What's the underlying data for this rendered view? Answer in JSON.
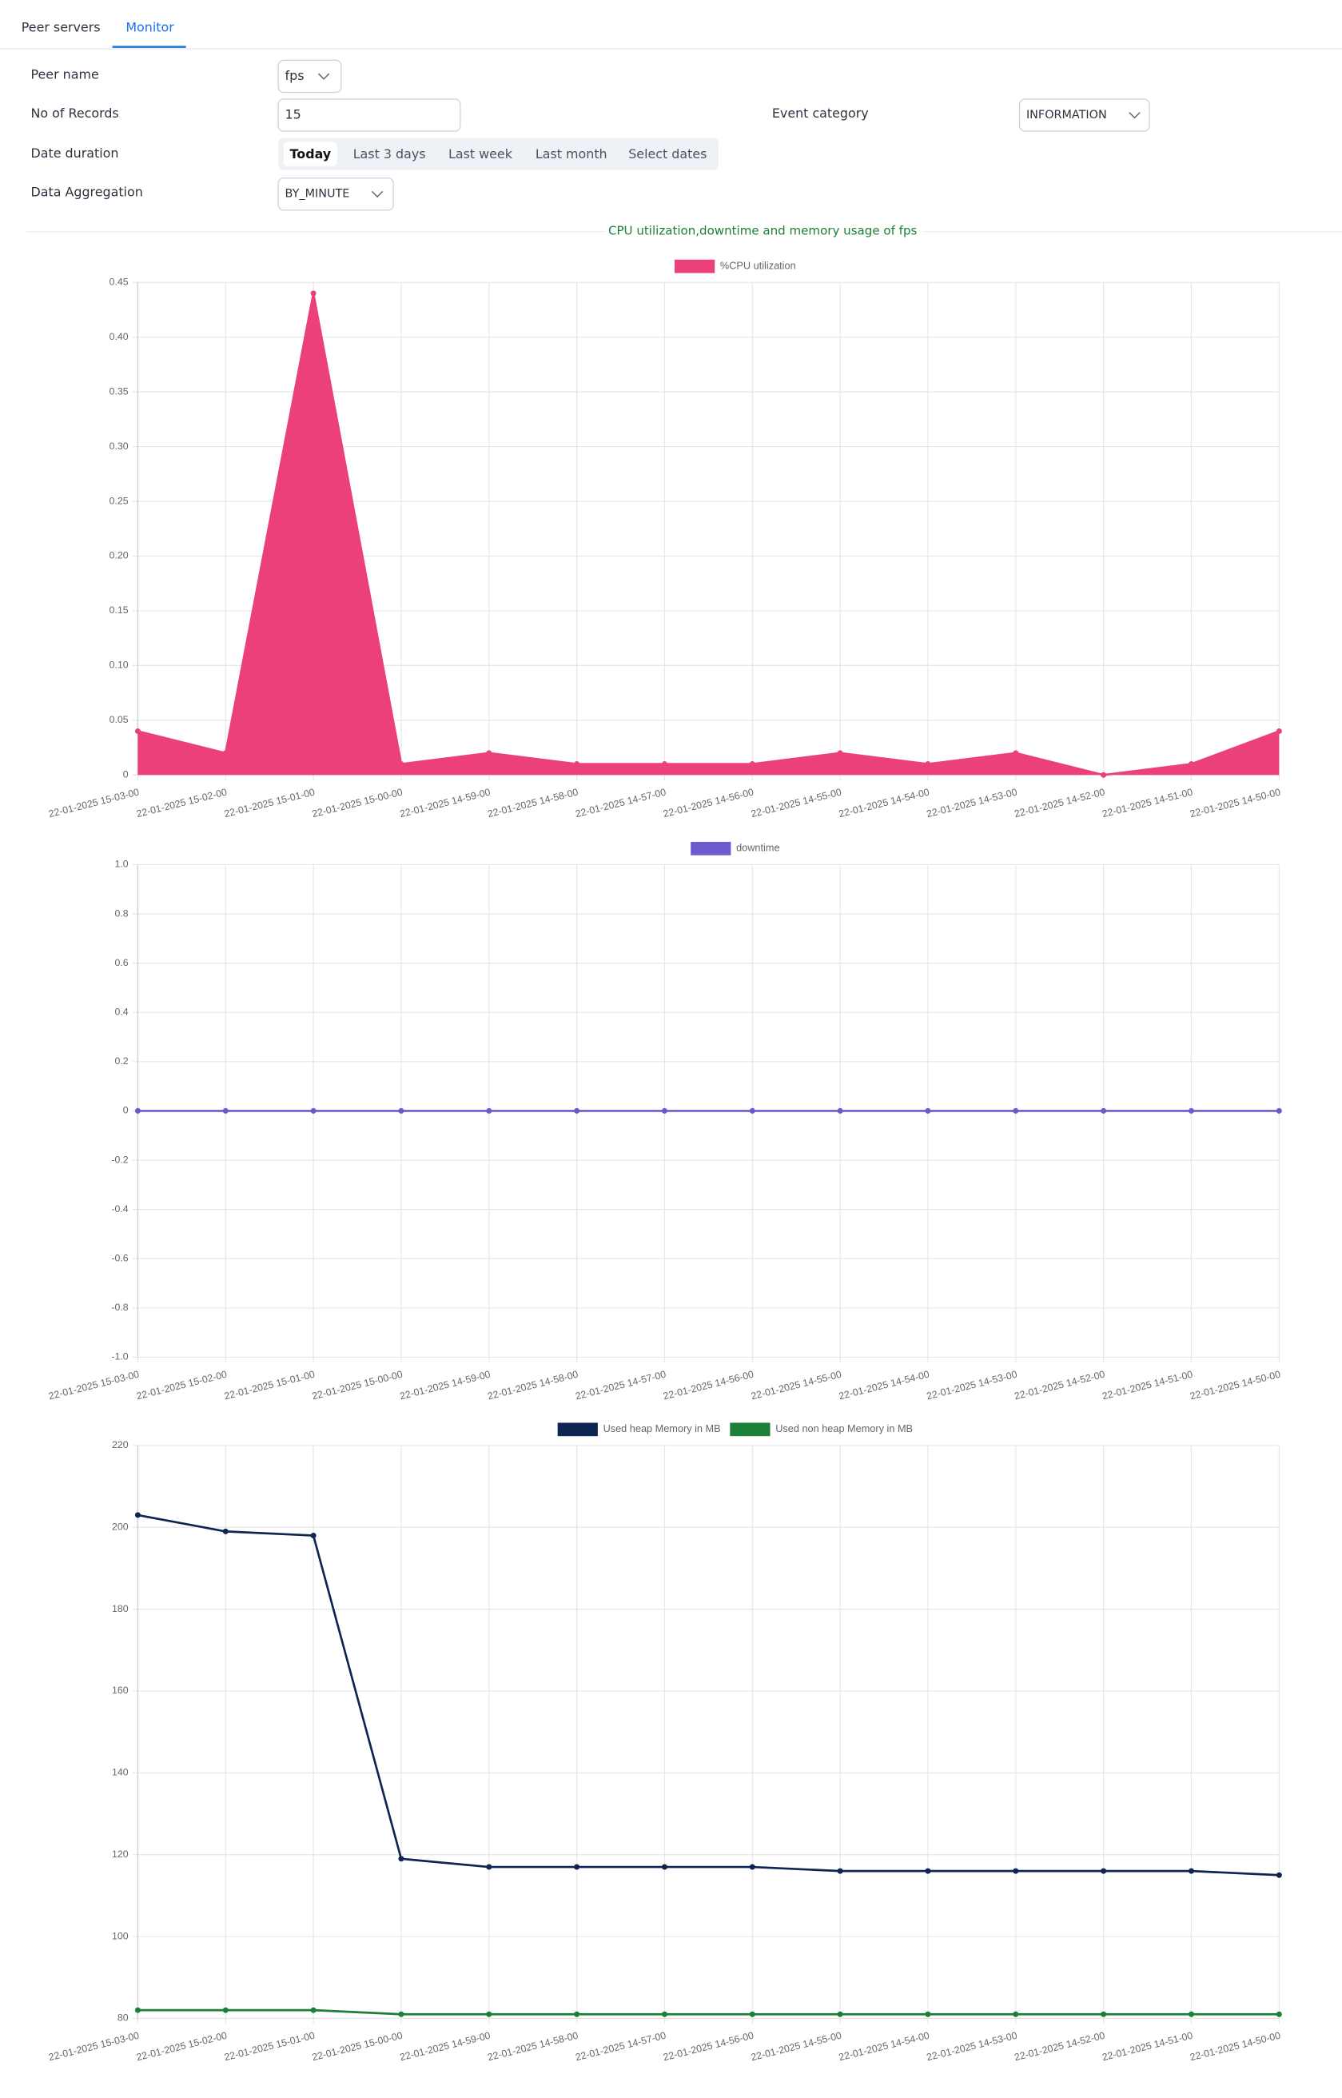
{
  "tabs": [
    "Peer servers",
    "Monitor"
  ],
  "form": {
    "peer_name": {
      "label": "Peer name",
      "value": "fps"
    },
    "records": {
      "label": "No of Records",
      "value": "15"
    },
    "event_category": {
      "label": "Event category",
      "value": "INFORMATION"
    },
    "date_duration": {
      "label": "Date duration",
      "options": [
        "Today",
        "Last 3 days",
        "Last week",
        "Last month",
        "Select dates"
      ]
    },
    "aggregation": {
      "label": "Data Aggregation",
      "value": "BY_MINUTE"
    }
  },
  "section_title": "CPU utilization,downtime and memory usage of fps",
  "chart_data": [
    {
      "type": "area",
      "categories": [
        "22-01-2025 15-03-00",
        "22-01-2025 15-02-00",
        "22-01-2025 15-01-00",
        "22-01-2025 15-00-00",
        "22-01-2025 14-59-00",
        "22-01-2025 14-58-00",
        "22-01-2025 14-57-00",
        "22-01-2025 14-56-00",
        "22-01-2025 14-55-00",
        "22-01-2025 14-54-00",
        "22-01-2025 14-53-00",
        "22-01-2025 14-52-00",
        "22-01-2025 14-51-00",
        "22-01-2025 14-50-00"
      ],
      "series": [
        {
          "name": "%CPU utilization",
          "color": "#ec407a",
          "values": [
            0.04,
            0.02,
            0.44,
            0.01,
            0.02,
            0.01,
            0.01,
            0.01,
            0.02,
            0.01,
            0.02,
            0,
            0.01,
            0.04
          ]
        }
      ],
      "ylim": [
        0,
        0.45
      ],
      "yticks": [
        0,
        0.05,
        {
          "value": 0.1,
          "label": "0.10"
        },
        0.15,
        {
          "value": 0.2,
          "label": "0.20"
        },
        0.25,
        {
          "value": 0.3,
          "label": "0.30"
        },
        0.35,
        {
          "value": 0.4,
          "label": "0.40"
        },
        0.45
      ],
      "grid": true,
      "legend": "top"
    },
    {
      "type": "line",
      "categories": [
        "22-01-2025 15-03-00",
        "22-01-2025 15-02-00",
        "22-01-2025 15-01-00",
        "22-01-2025 15-00-00",
        "22-01-2025 14-59-00",
        "22-01-2025 14-58-00",
        "22-01-2025 14-57-00",
        "22-01-2025 14-56-00",
        "22-01-2025 14-55-00",
        "22-01-2025 14-54-00",
        "22-01-2025 14-53-00",
        "22-01-2025 14-52-00",
        "22-01-2025 14-51-00",
        "22-01-2025 14-50-00"
      ],
      "series": [
        {
          "name": "downtime",
          "color": "#6a5acd",
          "values": [
            0,
            0,
            0,
            0,
            0,
            0,
            0,
            0,
            0,
            0,
            0,
            0,
            0,
            0
          ]
        }
      ],
      "ylim": [
        -1,
        1
      ],
      "yticks": [
        {
          "value": -1,
          "label": "-1.0"
        },
        -0.8,
        -0.6,
        -0.4,
        -0.2,
        0,
        0.2,
        0.4,
        0.6,
        0.8,
        {
          "value": 1,
          "label": "1.0"
        }
      ],
      "grid": true,
      "legend": "top"
    },
    {
      "type": "line",
      "categories": [
        "22-01-2025 15-03-00",
        "22-01-2025 15-02-00",
        "22-01-2025 15-01-00",
        "22-01-2025 15-00-00",
        "22-01-2025 14-59-00",
        "22-01-2025 14-58-00",
        "22-01-2025 14-57-00",
        "22-01-2025 14-56-00",
        "22-01-2025 14-55-00",
        "22-01-2025 14-54-00",
        "22-01-2025 14-53-00",
        "22-01-2025 14-52-00",
        "22-01-2025 14-51-00",
        "22-01-2025 14-50-00"
      ],
      "series": [
        {
          "name": "Used heap Memory in MB",
          "color": "#0d2550",
          "values": [
            203,
            199,
            198,
            119,
            117,
            117,
            117,
            117,
            116,
            116,
            116,
            116,
            116,
            115
          ]
        },
        {
          "name": "Used non heap Memory in MB",
          "color": "#1a7f37",
          "values": [
            82,
            82,
            82,
            81,
            81,
            81,
            81,
            81,
            81,
            81,
            81,
            81,
            81,
            81
          ]
        }
      ],
      "ylim": [
        80,
        220
      ],
      "yticks": [
        80,
        100,
        120,
        140,
        160,
        180,
        200,
        220
      ],
      "grid": true,
      "legend": "top"
    }
  ]
}
